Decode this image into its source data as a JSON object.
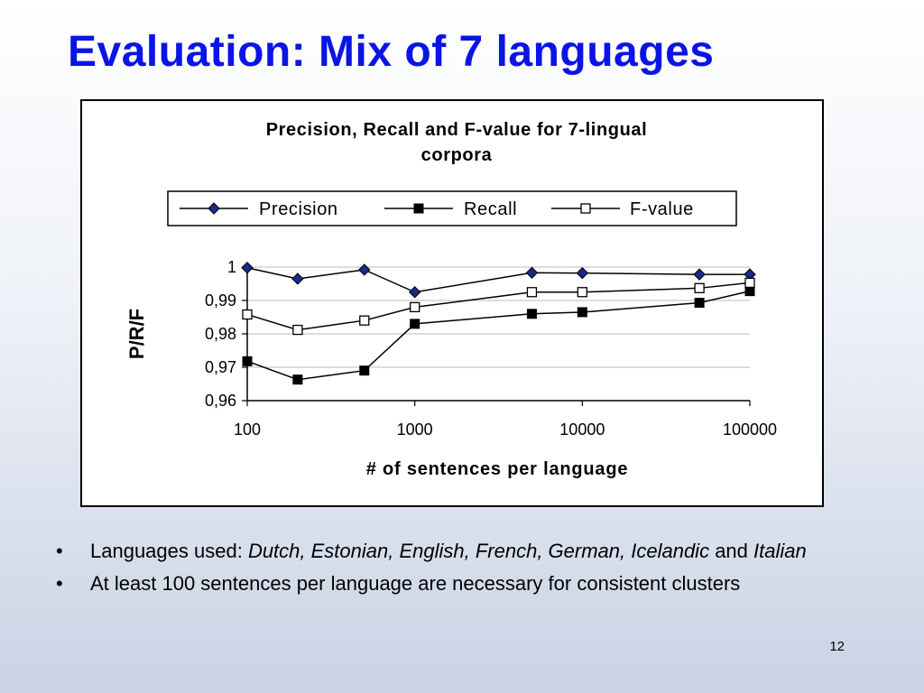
{
  "slide": {
    "title": "Evaluation: Mix of 7 languages",
    "number": "12"
  },
  "bullets": [
    {
      "prefix": "Languages used: ",
      "italic1": "Dutch, Estonian, English, French, German, Icelandic",
      "mid": " and ",
      "italic2": "Italian"
    },
    {
      "text": "At least 100 sentences per language are necessary for consistent clusters"
    }
  ],
  "chart_data": {
    "type": "line",
    "title_line1": "Precision, Recall and F-value for 7-lingual",
    "title_line2": "corpora",
    "xlabel": "# of sentences per language",
    "ylabel": "P/R/F",
    "xscale": "log",
    "xlim": [
      100,
      100000
    ],
    "ylim": [
      0.96,
      1.0
    ],
    "xticks": [
      100,
      1000,
      10000,
      100000
    ],
    "xtick_labels": [
      "100",
      "1000",
      "10000",
      "100000"
    ],
    "yticks": [
      0.96,
      0.97,
      0.98,
      0.99,
      1.0
    ],
    "ytick_labels": [
      "0,96",
      "0,97",
      "0,98",
      "0,99",
      "1"
    ],
    "grid": "horizontal",
    "legend_position": "top",
    "x": [
      100,
      200,
      500,
      1000,
      5000,
      10000,
      50000,
      100000
    ],
    "series": [
      {
        "name": "Precision",
        "marker": "diamond",
        "color": "#1a2a8a",
        "values": [
          0.9998,
          0.9965,
          0.9992,
          0.9925,
          0.9983,
          0.9982,
          0.9978,
          0.9978
        ]
      },
      {
        "name": "Recall",
        "marker": "filled-square",
        "color": "#000000",
        "values": [
          0.9718,
          0.9663,
          0.969,
          0.983,
          0.986,
          0.9865,
          0.9893,
          0.9928
        ]
      },
      {
        "name": "F-value",
        "marker": "open-square",
        "color": "#000000",
        "values": [
          0.9858,
          0.9812,
          0.984,
          0.988,
          0.9925,
          0.9925,
          0.9937,
          0.9953
        ]
      }
    ]
  }
}
